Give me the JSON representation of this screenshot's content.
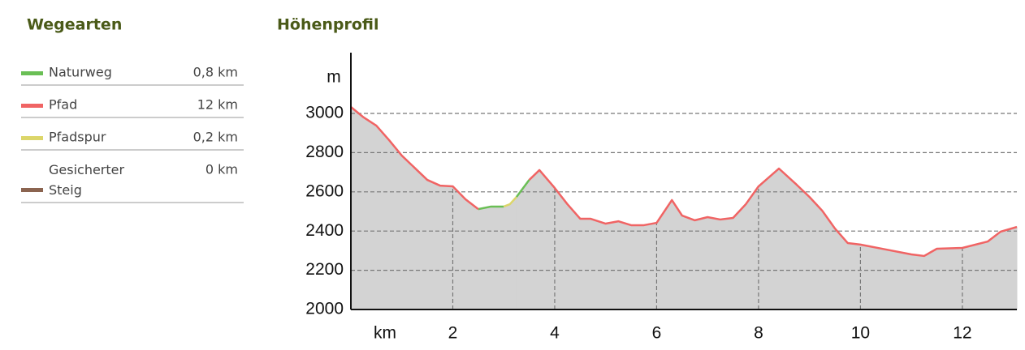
{
  "chart_data": {
    "type": "area",
    "legend_title": "Wegearten",
    "title": "Höhenprofil",
    "y_label": "m",
    "x_label": "km",
    "xlim": [
      0,
      13.07
    ],
    "ylim": [
      2000,
      3310
    ],
    "xticks": [
      2,
      4,
      6,
      8,
      10,
      12
    ],
    "yticks": [
      2000,
      2200,
      2400,
      2600,
      2800,
      3000
    ],
    "grid": true,
    "area_color": "#d3d3d3",
    "x": [
      0,
      0.25,
      0.5,
      0.75,
      1,
      1.25,
      1.5,
      1.75,
      2,
      2.25,
      2.5,
      2.75,
      3,
      3.12,
      3.25,
      3.5,
      3.7,
      4,
      4.25,
      4.5,
      4.7,
      5,
      5.25,
      5.5,
      5.75,
      6,
      6.3,
      6.5,
      6.75,
      7,
      7.25,
      7.5,
      7.75,
      8,
      8.4,
      8.75,
      9,
      9.25,
      9.5,
      9.75,
      10,
      10.5,
      11,
      11.25,
      11.5,
      12,
      12.5,
      12.75,
      13.07
    ],
    "series": [
      {
        "name": "Naturweg",
        "color": "#6abf55",
        "distance": "0,8 km",
        "values": [
          null,
          null,
          null,
          null,
          null,
          null,
          null,
          null,
          null,
          null,
          2512,
          2525,
          2525,
          null,
          2574,
          2661,
          null,
          null,
          null,
          null,
          null,
          null,
          null,
          null,
          null,
          null,
          null,
          null,
          null,
          null,
          null,
          null,
          null,
          null,
          null,
          null,
          null,
          null,
          null,
          null,
          null,
          null,
          null,
          null,
          null,
          null,
          null,
          null,
          null
        ]
      },
      {
        "name": "Pfad",
        "color": "#f06464",
        "distance": "12 km",
        "values": [
          3033,
          2980,
          2938,
          2864,
          2785,
          2723,
          2661,
          2632,
          2628,
          2562,
          2512,
          null,
          null,
          null,
          null,
          2661,
          2711,
          2620,
          2537,
          2463,
          2463,
          2438,
          2450,
          2430,
          2430,
          2442,
          2558,
          2479,
          2455,
          2471,
          2459,
          2467,
          2537,
          2628,
          2719,
          2636,
          2574,
          2504,
          2413,
          2339,
          2331,
          2306,
          2281,
          2273,
          2310,
          2314,
          2347,
          2397,
          2421
        ]
      },
      {
        "name": "Pfadspur",
        "color": "#dcd66a",
        "distance": "0,2 km",
        "values": [
          null,
          null,
          null,
          null,
          null,
          null,
          null,
          null,
          null,
          null,
          null,
          null,
          2525,
          2537,
          2574,
          null,
          null,
          null,
          null,
          null,
          null,
          null,
          null,
          null,
          null,
          null,
          null,
          null,
          null,
          null,
          null,
          null,
          null,
          null,
          null,
          null,
          null,
          null,
          null,
          null,
          null,
          null,
          null,
          null,
          null,
          null,
          null,
          null,
          null
        ]
      },
      {
        "name": "Gesicherter Steig",
        "color": "#8b6450",
        "distance": "0 km",
        "values": [
          null,
          null,
          null,
          null,
          null,
          null,
          null,
          null,
          null,
          null,
          null,
          null,
          null,
          null,
          null,
          null,
          null,
          null,
          null,
          null,
          null,
          null,
          null,
          null,
          null,
          null,
          null,
          null,
          null,
          null,
          null,
          null,
          null,
          null,
          null,
          null,
          null,
          null,
          null,
          null,
          null,
          null,
          null,
          null,
          null,
          null,
          null,
          null,
          null
        ]
      }
    ]
  }
}
